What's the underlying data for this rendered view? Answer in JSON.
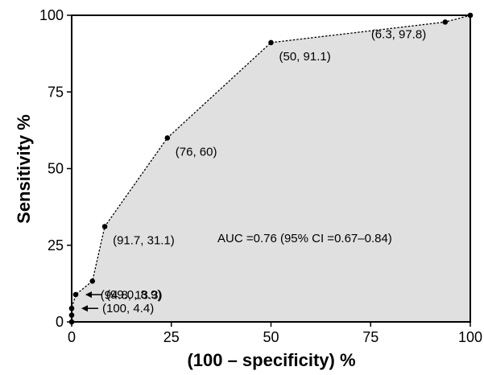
{
  "chart_data": {
    "type": "area",
    "xlabel": "(100 – specificity) %",
    "ylabel": "Sensitivity %",
    "xlim": [
      0,
      100
    ],
    "ylim": [
      0,
      100
    ],
    "xticks": [
      0,
      25,
      50,
      75,
      100
    ],
    "yticks": [
      0,
      25,
      50,
      75,
      100
    ],
    "grid": false,
    "annotation": "AUC =0.76 (95% CI =0.67–0.84)",
    "fill_color": "#e0e0e0",
    "line_color": "#000000",
    "points": [
      {
        "x": 0,
        "y": 0,
        "label": ""
      },
      {
        "x": 0,
        "y": 2.2,
        "label": ""
      },
      {
        "x": 0,
        "y": 4.4,
        "label": "(100, 4.4)",
        "arrow": true
      },
      {
        "x": 1,
        "y": 8.9,
        "label": "(99.0, 8.9)",
        "arrow": true
      },
      {
        "x": 5.2,
        "y": 13.3,
        "label": "(94.8, 13.3)"
      },
      {
        "x": 8.3,
        "y": 31.1,
        "label": "(91.7, 31.1)"
      },
      {
        "x": 24,
        "y": 60,
        "label": "(76, 60)"
      },
      {
        "x": 50,
        "y": 91.1,
        "label": "(50, 91.1)"
      },
      {
        "x": 93.7,
        "y": 97.8,
        "label": "(6.3, 97.8)"
      },
      {
        "x": 100,
        "y": 100,
        "label": ""
      }
    ]
  }
}
